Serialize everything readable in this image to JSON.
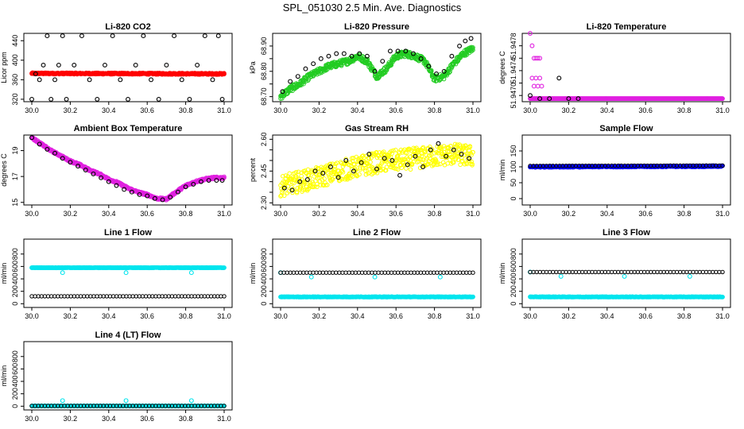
{
  "title": "SPL_051030  2.5 Min. Ave. Diagnostics",
  "colors": {
    "red": "#ff0000",
    "green": "#22cc22",
    "magenta": "#e020e0",
    "yellow": "#ffff00",
    "blue": "#0000ff",
    "cyan": "#00e5ee",
    "black": "#000000"
  },
  "chart_data": [
    {
      "id": "co2",
      "type": "scatter",
      "title": "Li-820 CO2",
      "ylabel": "Licor ppm",
      "xlim": [
        30.0,
        31.0
      ],
      "ylim": [
        315,
        455
      ],
      "xticks": [
        "30.0",
        "30.2",
        "30.4",
        "30.6",
        "30.8",
        "31.0"
      ],
      "yticks": [
        320,
        360,
        400,
        440
      ],
      "series": [
        {
          "name": "fill",
          "color": "red",
          "style": "dense",
          "x": [
            30.0,
            31.0
          ],
          "y": [
            373,
            372
          ],
          "jitter": 1.5
        },
        {
          "name": "points",
          "color": "black",
          "style": "points",
          "x": [
            30.0,
            30.02,
            30.04,
            30.06,
            30.08,
            30.1,
            30.12,
            30.14,
            30.16,
            30.18,
            30.22,
            30.26,
            30.3,
            30.34,
            30.38,
            30.42,
            30.46,
            30.5,
            30.54,
            30.58,
            30.62,
            30.66,
            30.7,
            30.74,
            30.78,
            30.82,
            30.86,
            30.9,
            30.94,
            30.97,
            30.99
          ],
          "y": [
            320,
            372,
            360,
            390,
            450,
            320,
            360,
            390,
            450,
            320,
            390,
            450,
            360,
            320,
            390,
            450,
            360,
            320,
            390,
            450,
            360,
            320,
            390,
            450,
            360,
            320,
            390,
            450,
            360,
            450,
            320
          ]
        }
      ]
    },
    {
      "id": "pressure",
      "type": "scatter",
      "title": "Li-820 Pressure",
      "ylabel": "kPa",
      "xlim": [
        30.0,
        31.0
      ],
      "ylim": [
        68.68,
        68.95
      ],
      "xticks": [
        "30.0",
        "30.2",
        "30.4",
        "30.6",
        "30.8",
        "31.0"
      ],
      "yticks": [
        68.7,
        68.75,
        68.8,
        68.85,
        68.9
      ],
      "ytick_labels": [
        "68.70",
        "",
        "68.80",
        "",
        "68.90"
      ],
      "series": [
        {
          "name": "fill",
          "color": "green",
          "style": "dense",
          "x": [
            30.0,
            30.05,
            30.1,
            30.15,
            30.2,
            30.25,
            30.3,
            30.35,
            30.4,
            30.45,
            30.5,
            30.55,
            30.6,
            30.65,
            30.7,
            30.75,
            30.8,
            30.85,
            30.9,
            30.95,
            31.0
          ],
          "y": [
            68.7,
            68.73,
            68.75,
            68.78,
            68.8,
            68.82,
            68.83,
            68.84,
            68.86,
            68.84,
            68.78,
            68.81,
            68.86,
            68.87,
            68.86,
            68.84,
            68.77,
            68.78,
            68.83,
            68.87,
            68.89
          ],
          "jitter": 0.012
        },
        {
          "name": "points",
          "color": "black",
          "style": "points",
          "x": [
            30.01,
            30.05,
            30.09,
            30.13,
            30.17,
            30.21,
            30.25,
            30.29,
            30.33,
            30.37,
            30.41,
            30.45,
            30.49,
            30.53,
            30.57,
            30.61,
            30.65,
            30.69,
            30.73,
            30.77,
            30.81,
            30.85,
            30.89,
            30.93,
            30.96,
            30.99
          ],
          "y": [
            68.72,
            68.76,
            68.78,
            68.81,
            68.83,
            68.85,
            68.86,
            68.87,
            68.87,
            68.86,
            68.87,
            68.86,
            68.8,
            68.84,
            68.88,
            68.88,
            68.88,
            68.87,
            68.85,
            68.82,
            68.79,
            68.8,
            68.86,
            68.9,
            68.92,
            68.93
          ]
        }
      ]
    },
    {
      "id": "licor_temp",
      "type": "scatter",
      "title": "Li-820 Temperature",
      "ylabel": "degrees C",
      "xlim": [
        30.0,
        31.0
      ],
      "ylim": [
        51.9469,
        51.948
      ],
      "xticks": [
        "30.0",
        "30.2",
        "30.4",
        "30.6",
        "30.8",
        "31.0"
      ],
      "yticks": [
        51.947,
        51.9472,
        51.9474,
        51.9476,
        51.9478
      ],
      "ytick_labels": [
        "51.9470",
        "",
        "51.9474",
        "",
        "51.9478"
      ],
      "series": [
        {
          "name": "base",
          "color": "magenta",
          "style": "dense",
          "x": [
            30.0,
            31.0
          ],
          "y": [
            51.94695,
            51.94695
          ],
          "jitter": 0.0
        },
        {
          "name": "upper",
          "color": "magenta",
          "style": "points",
          "x": [
            30.0,
            30.01,
            30.02,
            30.03,
            30.04,
            30.05,
            30.01,
            30.03,
            30.05,
            30.02,
            30.04,
            30.06
          ],
          "y": [
            51.948,
            51.9478,
            51.9476,
            51.9476,
            51.9476,
            51.9476,
            51.94728,
            51.94728,
            51.94728,
            51.94715,
            51.94715,
            51.94715
          ]
        },
        {
          "name": "points",
          "color": "black",
          "style": "points",
          "x": [
            30.0,
            30.05,
            30.1,
            30.15,
            30.2,
            30.25
          ],
          "y": [
            51.947,
            51.94695,
            51.94695,
            51.94728,
            51.94695,
            51.94695
          ]
        }
      ]
    },
    {
      "id": "ambient",
      "type": "scatter",
      "title": "Ambient Box Temperature",
      "ylabel": "degrees C",
      "xlim": [
        30.0,
        31.0
      ],
      "ylim": [
        14.8,
        20.2
      ],
      "xticks": [
        "30.0",
        "30.2",
        "30.4",
        "30.6",
        "30.8",
        "31.0"
      ],
      "yticks": [
        15,
        17,
        19
      ],
      "series": [
        {
          "name": "fill",
          "color": "magenta",
          "style": "dense",
          "x": [
            30.0,
            30.05,
            30.1,
            30.15,
            30.2,
            30.25,
            30.3,
            30.35,
            30.4,
            30.45,
            30.5,
            30.55,
            30.6,
            30.65,
            30.7,
            30.75,
            30.8,
            30.85,
            30.9,
            30.95,
            31.0
          ],
          "y": [
            20.0,
            19.5,
            19.0,
            18.6,
            18.2,
            17.9,
            17.5,
            17.2,
            16.8,
            16.5,
            16.1,
            15.8,
            15.6,
            15.3,
            15.25,
            15.8,
            16.3,
            16.6,
            16.8,
            16.9,
            16.9
          ],
          "jitter": 0.08
        },
        {
          "name": "points",
          "color": "black",
          "style": "points",
          "x": [
            30.0,
            30.04,
            30.08,
            30.12,
            30.16,
            30.2,
            30.24,
            30.28,
            30.32,
            30.36,
            30.4,
            30.44,
            30.48,
            30.52,
            30.56,
            30.6,
            30.64,
            30.68,
            30.72,
            30.76,
            30.8,
            30.84,
            30.88,
            30.92,
            30.96,
            30.99
          ],
          "y": [
            20.0,
            19.5,
            19.1,
            18.8,
            18.4,
            18.1,
            17.8,
            17.5,
            17.2,
            16.9,
            16.6,
            16.3,
            16.0,
            15.8,
            15.6,
            15.5,
            15.3,
            15.2,
            15.4,
            15.8,
            16.2,
            16.4,
            16.6,
            16.7,
            16.7,
            16.7
          ]
        }
      ]
    },
    {
      "id": "rh",
      "type": "scatter",
      "title": "Gas Stream RH",
      "ylabel": "percent",
      "xlim": [
        30.0,
        31.0
      ],
      "ylim": [
        2.29,
        2.62
      ],
      "xticks": [
        "30.0",
        "30.2",
        "30.4",
        "30.6",
        "30.8",
        "31.0"
      ],
      "yticks": [
        2.3,
        2.35,
        2.4,
        2.45,
        2.5,
        2.55,
        2.6
      ],
      "ytick_labels": [
        "2.30",
        "",
        "",
        "2.45",
        "",
        "",
        "2.60"
      ],
      "series": [
        {
          "name": "fill",
          "color": "yellow",
          "style": "dense",
          "x": [
            30.0,
            30.1,
            30.2,
            30.3,
            30.4,
            30.5,
            30.6,
            30.7,
            30.8,
            30.9,
            31.0
          ],
          "y": [
            2.38,
            2.4,
            2.42,
            2.45,
            2.47,
            2.49,
            2.5,
            2.51,
            2.52,
            2.53,
            2.52
          ],
          "jitter": 0.05
        },
        {
          "name": "points",
          "color": "black",
          "style": "points",
          "x": [
            30.02,
            30.06,
            30.1,
            30.14,
            30.18,
            30.22,
            30.26,
            30.3,
            30.34,
            30.38,
            30.42,
            30.46,
            30.5,
            30.54,
            30.58,
            30.62,
            30.66,
            30.7,
            30.74,
            30.78,
            30.82,
            30.86,
            30.9,
            30.94,
            30.98
          ],
          "y": [
            2.37,
            2.36,
            2.4,
            2.41,
            2.45,
            2.44,
            2.47,
            2.42,
            2.5,
            2.45,
            2.49,
            2.53,
            2.46,
            2.51,
            2.5,
            2.43,
            2.48,
            2.52,
            2.47,
            2.55,
            2.58,
            2.52,
            2.55,
            2.53,
            2.51
          ]
        }
      ]
    },
    {
      "id": "sample_flow",
      "type": "scatter",
      "title": "Sample Flow",
      "ylabel": "ml/min",
      "xlim": [
        30.0,
        31.0
      ],
      "ylim": [
        -20,
        200
      ],
      "xticks": [
        "30.0",
        "30.2",
        "30.4",
        "30.6",
        "30.8",
        "31.0"
      ],
      "yticks": [
        0,
        50,
        100,
        150
      ],
      "series": [
        {
          "name": "fill",
          "color": "blue",
          "style": "dense",
          "x": [
            30.0,
            31.0
          ],
          "y": [
            100,
            102
          ],
          "jitter": 2
        },
        {
          "name": "points",
          "color": "black",
          "style": "line-points",
          "x": [
            30.0,
            31.0
          ],
          "y": [
            103,
            104
          ]
        }
      ]
    },
    {
      "id": "line1",
      "type": "scatter",
      "title": "Line 1 Flow",
      "ylabel": "ml/min",
      "xlim": [
        30.0,
        31.0
      ],
      "ylim": [
        -60,
        1040
      ],
      "xticks": [
        "30.0",
        "30.2",
        "30.4",
        "30.6",
        "30.8",
        "31.0"
      ],
      "yticks": [
        0,
        200,
        400,
        600,
        800
      ],
      "series": [
        {
          "name": "fill",
          "color": "cyan",
          "style": "dense",
          "x": [
            30.0,
            31.0
          ],
          "y": [
            580,
            580
          ],
          "jitter": 4
        },
        {
          "name": "dips",
          "color": "cyan",
          "style": "points",
          "x": [
            30.16,
            30.49,
            30.83
          ],
          "y": [
            500,
            500,
            500
          ]
        },
        {
          "name": "points",
          "color": "black",
          "style": "line-points",
          "x": [
            30.0,
            31.0
          ],
          "y": [
            120,
            120
          ]
        }
      ]
    },
    {
      "id": "line2",
      "type": "scatter",
      "title": "Line 2 Flow",
      "ylabel": "ml/min",
      "xlim": [
        30.0,
        31.0
      ],
      "ylim": [
        -60,
        1040
      ],
      "xticks": [
        "30.0",
        "30.2",
        "30.4",
        "30.6",
        "30.8",
        "31.0"
      ],
      "yticks": [
        0,
        200,
        400,
        600,
        800
      ],
      "series": [
        {
          "name": "fill",
          "color": "cyan",
          "style": "dense",
          "x": [
            30.0,
            31.0
          ],
          "y": [
            110,
            110
          ],
          "jitter": 4
        },
        {
          "name": "dips",
          "color": "cyan",
          "style": "points",
          "x": [
            30.0,
            30.16,
            30.49,
            30.83
          ],
          "y": [
            500,
            430,
            430,
            430
          ]
        },
        {
          "name": "points",
          "color": "black",
          "style": "line-points",
          "x": [
            30.0,
            31.0
          ],
          "y": [
            500,
            500
          ]
        }
      ]
    },
    {
      "id": "line3",
      "type": "scatter",
      "title": "Line 3 Flow",
      "ylabel": "ml/min",
      "xlim": [
        30.0,
        31.0
      ],
      "ylim": [
        -60,
        1040
      ],
      "xticks": [
        "30.0",
        "30.2",
        "30.4",
        "30.6",
        "30.8",
        "31.0"
      ],
      "yticks": [
        0,
        200,
        400,
        600,
        800
      ],
      "series": [
        {
          "name": "fill",
          "color": "cyan",
          "style": "dense",
          "x": [
            30.0,
            31.0
          ],
          "y": [
            110,
            110
          ],
          "jitter": 4
        },
        {
          "name": "dips",
          "color": "cyan",
          "style": "points",
          "x": [
            30.0,
            30.16,
            30.49,
            30.83
          ],
          "y": [
            510,
            440,
            440,
            440
          ]
        },
        {
          "name": "points",
          "color": "black",
          "style": "line-points",
          "x": [
            30.0,
            31.0
          ],
          "y": [
            510,
            510
          ]
        }
      ]
    },
    {
      "id": "line4",
      "type": "scatter",
      "title": "Line 4 (LT) Flow",
      "ylabel": "ml/min",
      "xlim": [
        30.0,
        31.0
      ],
      "ylim": [
        -60,
        1040
      ],
      "xticks": [
        "30.0",
        "30.2",
        "30.4",
        "30.6",
        "30.8",
        "31.0"
      ],
      "yticks": [
        0,
        200,
        400,
        600,
        800
      ],
      "series": [
        {
          "name": "fill",
          "color": "cyan",
          "style": "dense",
          "x": [
            30.0,
            31.0
          ],
          "y": [
            5,
            5
          ],
          "jitter": 2
        },
        {
          "name": "spikes",
          "color": "cyan",
          "style": "points",
          "x": [
            30.16,
            30.49,
            30.83
          ],
          "y": [
            90,
            90,
            90
          ]
        },
        {
          "name": "points",
          "color": "black",
          "style": "line-points",
          "x": [
            30.0,
            31.0
          ],
          "y": [
            5,
            5
          ]
        }
      ]
    }
  ]
}
